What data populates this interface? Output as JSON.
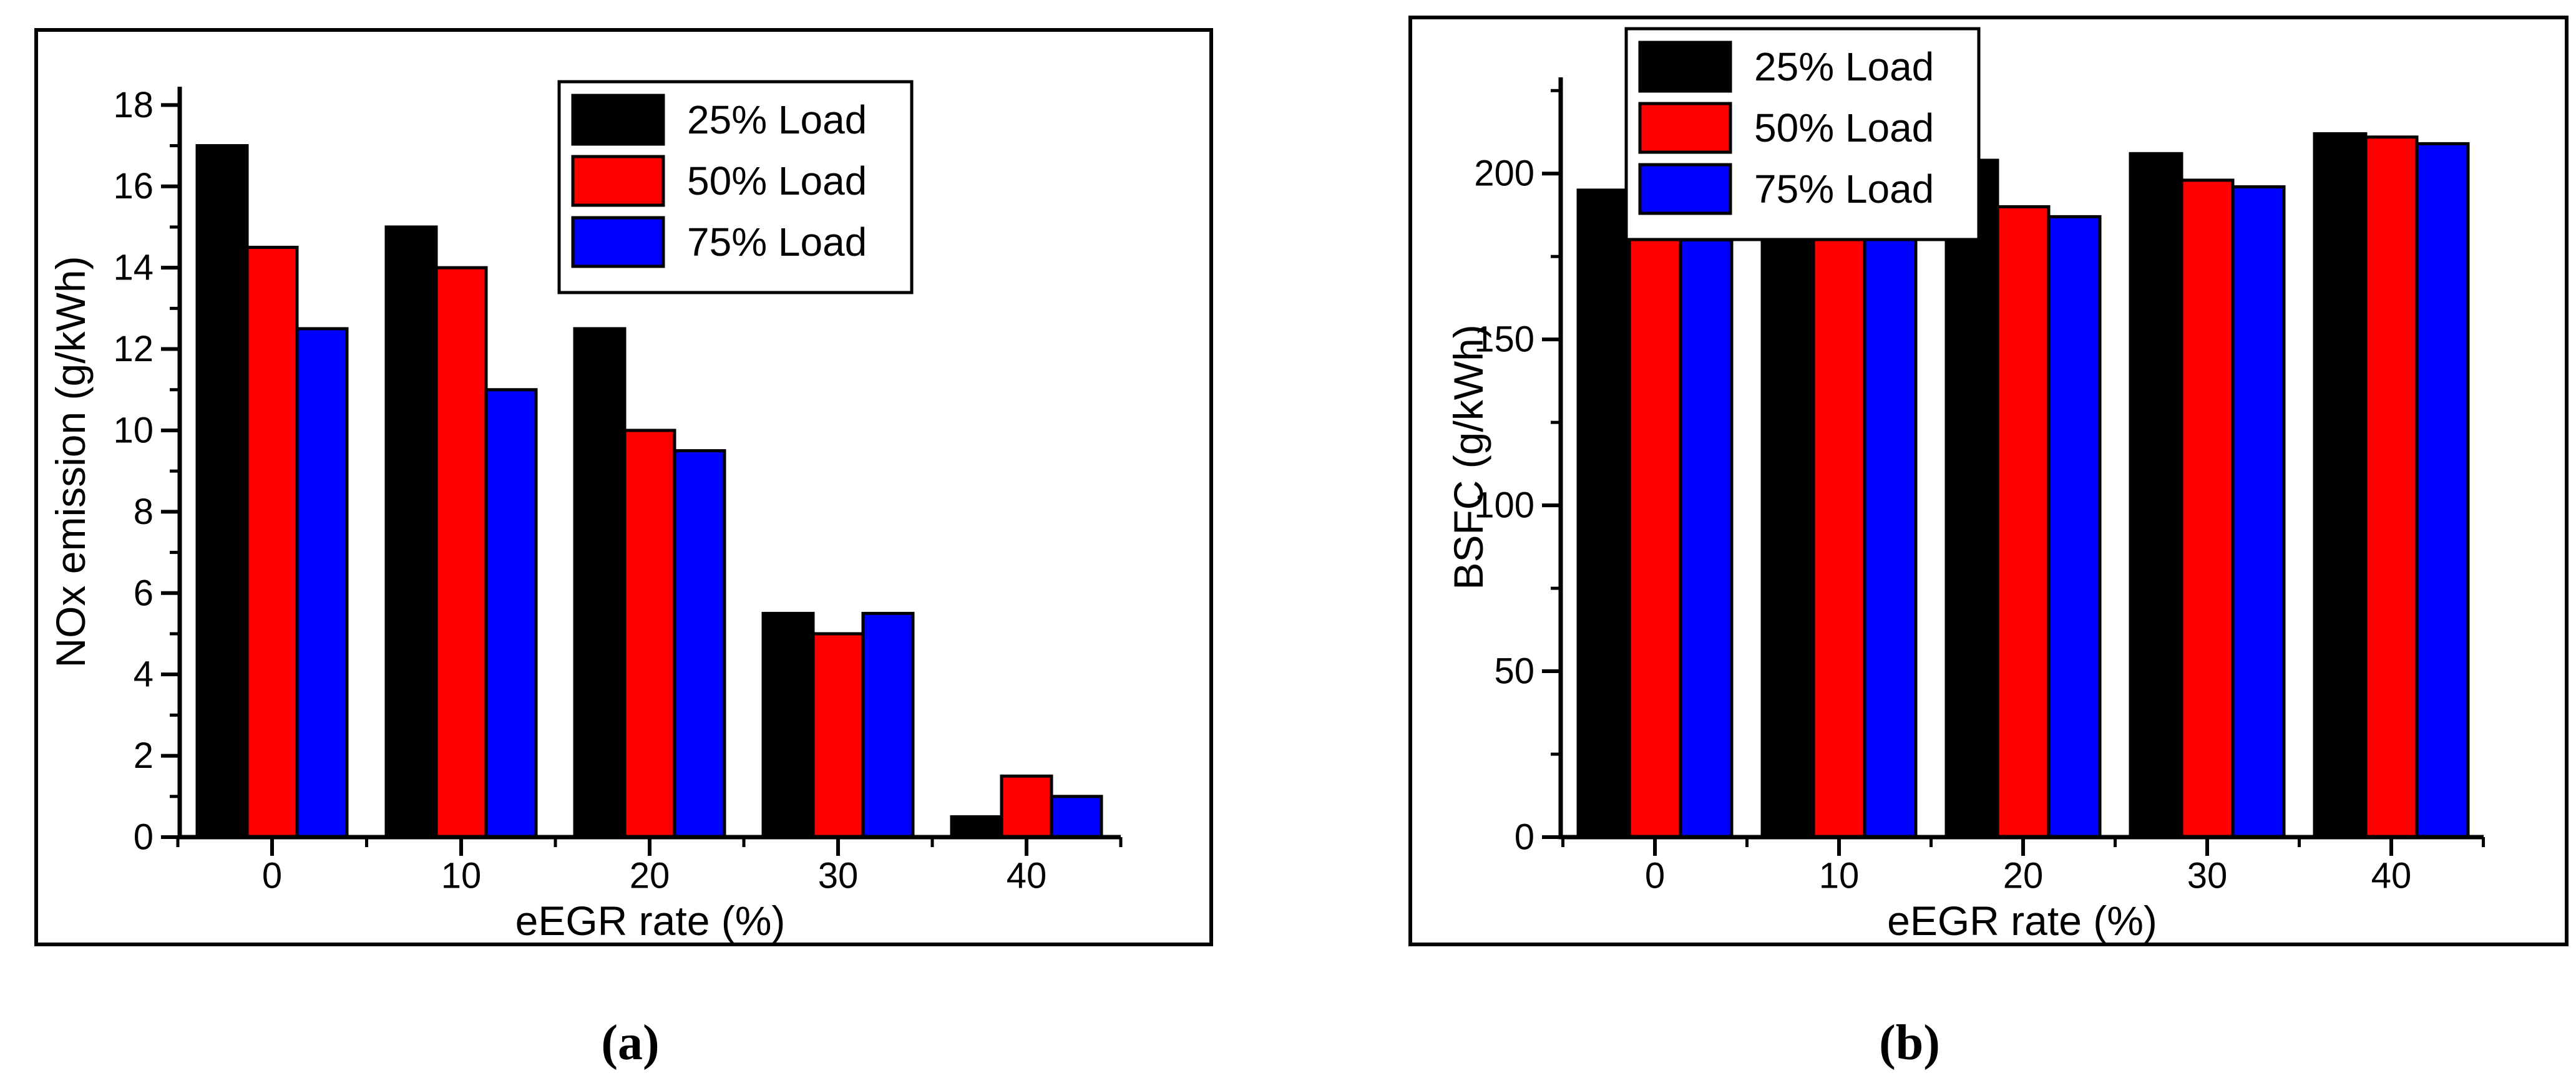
{
  "figure": {
    "caption_a": "(a)",
    "caption_b": "(b)"
  },
  "palette": {
    "series_colors": [
      "#000000",
      "#FF0000",
      "#0000FF"
    ],
    "axis_color": "#000000",
    "background": "#FFFFFF"
  },
  "chart_data": [
    {
      "type": "bar",
      "panel": "a",
      "title": "",
      "xlabel": "eEGR rate (%)",
      "ylabel": "NOx emission (g/kWh)",
      "categories": [
        "0",
        "10",
        "20",
        "30",
        "40"
      ],
      "series": [
        {
          "name": "25% Load",
          "color": "#000000",
          "values": [
            17,
            15,
            12.5,
            5.5,
            0.5
          ]
        },
        {
          "name": "50% Load",
          "color": "#FF0000",
          "values": [
            14.5,
            14,
            10,
            5,
            1.5
          ]
        },
        {
          "name": "75% Load",
          "color": "#0000FF",
          "values": [
            12.5,
            11,
            9.5,
            5.5,
            1
          ]
        }
      ],
      "ylim": [
        0,
        18.45
      ],
      "yticks": [
        0,
        2,
        4,
        6,
        8,
        10,
        12,
        14,
        16,
        18
      ],
      "yminor": [
        1,
        3,
        5,
        7,
        9,
        11,
        13,
        15,
        17
      ],
      "legend_position": "inside-top-center",
      "grid": false
    },
    {
      "type": "bar",
      "panel": "b",
      "title": "",
      "xlabel": "eEGR rate (%)",
      "ylabel": "BSFC (g/kWh)",
      "categories": [
        "0",
        "10",
        "20",
        "30",
        "40"
      ],
      "series": [
        {
          "name": "25% Load",
          "color": "#000000",
          "values": [
            195,
            198,
            204,
            206,
            212
          ]
        },
        {
          "name": "50% Load",
          "color": "#FF0000",
          "values": [
            182,
            185,
            190,
            198,
            211
          ]
        },
        {
          "name": "75% Load",
          "color": "#0000FF",
          "values": [
            180,
            182,
            187,
            196,
            209
          ]
        }
      ],
      "ylim": [
        0,
        229
      ],
      "yticks": [
        0,
        50,
        100,
        150,
        200
      ],
      "yminor": [
        25,
        75,
        125,
        175,
        225
      ],
      "legend_position": "inside-top-left",
      "grid": false
    }
  ]
}
